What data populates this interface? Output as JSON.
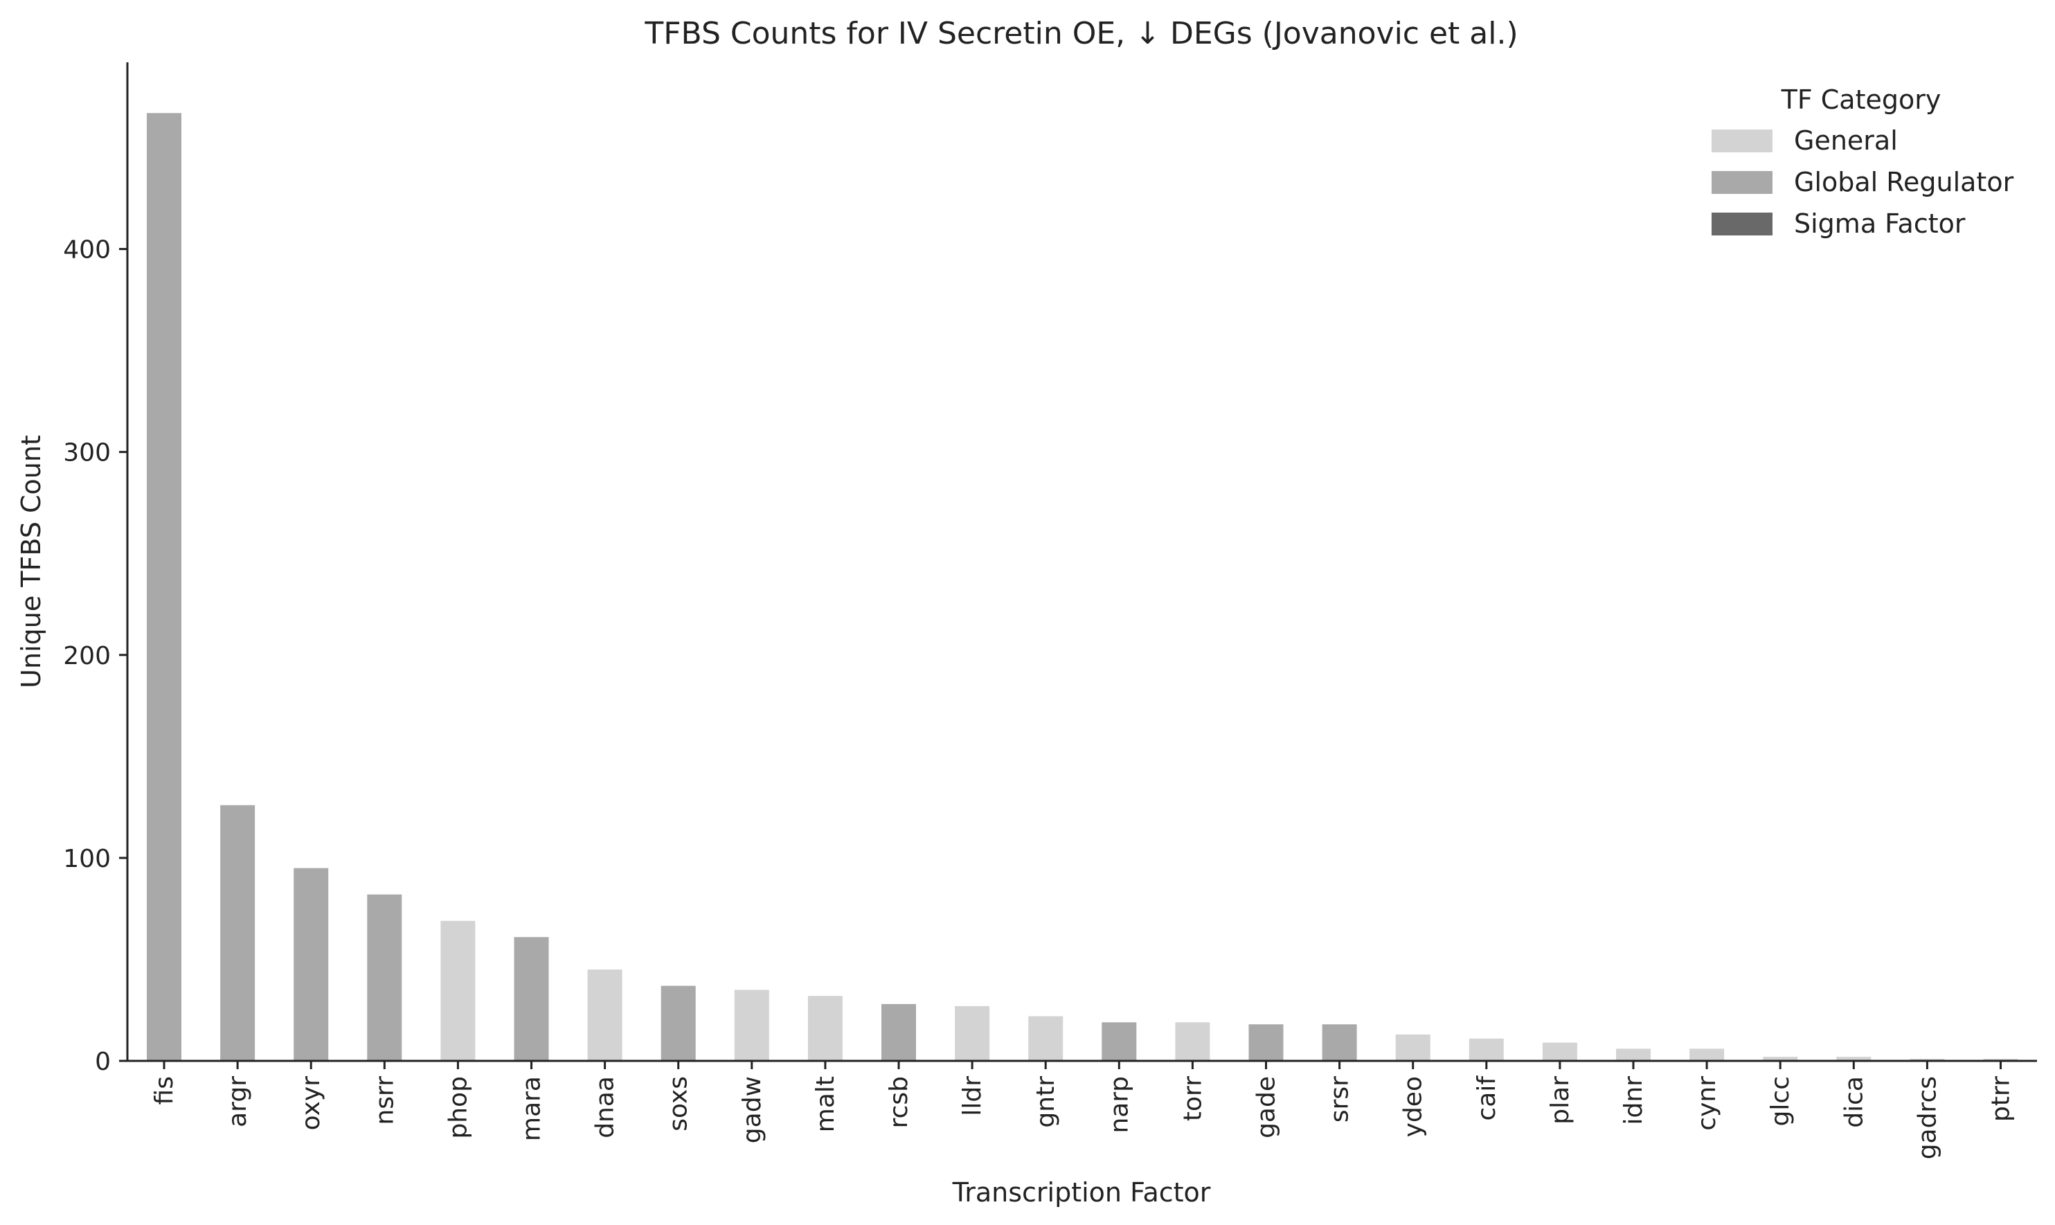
{
  "chart_data": {
    "type": "bar",
    "title": "TFBS Counts for IV Secretin OE, ↓ DEGs (Jovanovic et al.)",
    "xlabel": "Transcription Factor",
    "ylabel": "Unique TFBS Count",
    "ylim": [
      0,
      492
    ],
    "yticks": [
      0,
      100,
      200,
      300,
      400
    ],
    "grid": false,
    "legend": {
      "title": "TF Category",
      "placement": "top-right",
      "entries": [
        {
          "label": "General",
          "color": "#d3d3d3"
        },
        {
          "label": "Global Regulator",
          "color": "#a9a9a9"
        },
        {
          "label": "Sigma Factor",
          "color": "#696969"
        }
      ]
    },
    "categories": [
      "fis",
      "argr",
      "oxyr",
      "nsrr",
      "phop",
      "mara",
      "dnaa",
      "soxs",
      "gadw",
      "malt",
      "rcsb",
      "lldr",
      "gntr",
      "narp",
      "torr",
      "gade",
      "srsr",
      "ydeo",
      "caif",
      "plar",
      "idnr",
      "cynr",
      "glcc",
      "dica",
      "gadrcs",
      "ptrr"
    ],
    "values": [
      467,
      126,
      95,
      82,
      69,
      61,
      45,
      37,
      35,
      32,
      28,
      27,
      22,
      19,
      19,
      18,
      18,
      13,
      11,
      9,
      6,
      6,
      2,
      2,
      1,
      1
    ],
    "bar_categories": [
      "Global Regulator",
      "Global Regulator",
      "Global Regulator",
      "Global Regulator",
      "General",
      "Global Regulator",
      "General",
      "Global Regulator",
      "General",
      "General",
      "Global Regulator",
      "General",
      "General",
      "Global Regulator",
      "General",
      "Global Regulator",
      "Global Regulator",
      "General",
      "General",
      "General",
      "General",
      "General",
      "General",
      "General",
      "General",
      "General"
    ]
  }
}
